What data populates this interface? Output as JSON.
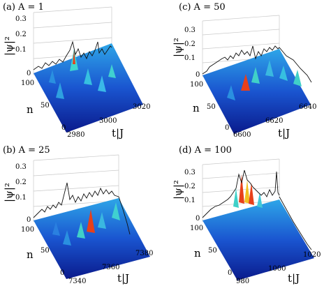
{
  "figure": {
    "panels": [
      {
        "id": "a",
        "title": "(a) A = 1",
        "z_ticks": [
          "0",
          "0.1",
          "0.2",
          "0.3"
        ],
        "n_ticks": [
          "0",
          "50",
          "100"
        ],
        "t_ticks": [
          "2980",
          "3000",
          "3020"
        ],
        "zlabel": "|ψ|²",
        "nlabel": "n",
        "tlabel": "t|J"
      },
      {
        "id": "c",
        "title": "(c) A = 50",
        "z_ticks": [
          "0",
          "0.1",
          "0.2",
          "0.3"
        ],
        "n_ticks": [
          "0",
          "50",
          "100"
        ],
        "t_ticks": [
          "6600",
          "6620",
          "6640"
        ],
        "zlabel": "|ψ|²",
        "nlabel": "n",
        "tlabel": "t|J"
      },
      {
        "id": "b",
        "title": "(b) A = 25",
        "z_ticks": [
          "0",
          "0.1",
          "0.2",
          "0.3"
        ],
        "n_ticks": [
          "0",
          "50",
          "100"
        ],
        "t_ticks": [
          "7340",
          "7360",
          "7380"
        ],
        "zlabel": "|ψ|²",
        "nlabel": "n",
        "tlabel": "t|J"
      },
      {
        "id": "d",
        "title": "(d) A = 100",
        "z_ticks": [
          "0",
          "0.1",
          "0.2",
          "0.3"
        ],
        "n_ticks": [
          "0",
          "50",
          "100"
        ],
        "t_ticks": [
          "980",
          "1000",
          "1020"
        ],
        "zlabel": "|ψ|²",
        "nlabel": "n",
        "tlabel": "t|J"
      }
    ]
  },
  "colors": {
    "surface_low": "#0a1a8c",
    "surface_mid": "#1f7ae0",
    "surface_high": "#36d6c8",
    "peak": "#e8401a",
    "profile": "#111111"
  }
}
